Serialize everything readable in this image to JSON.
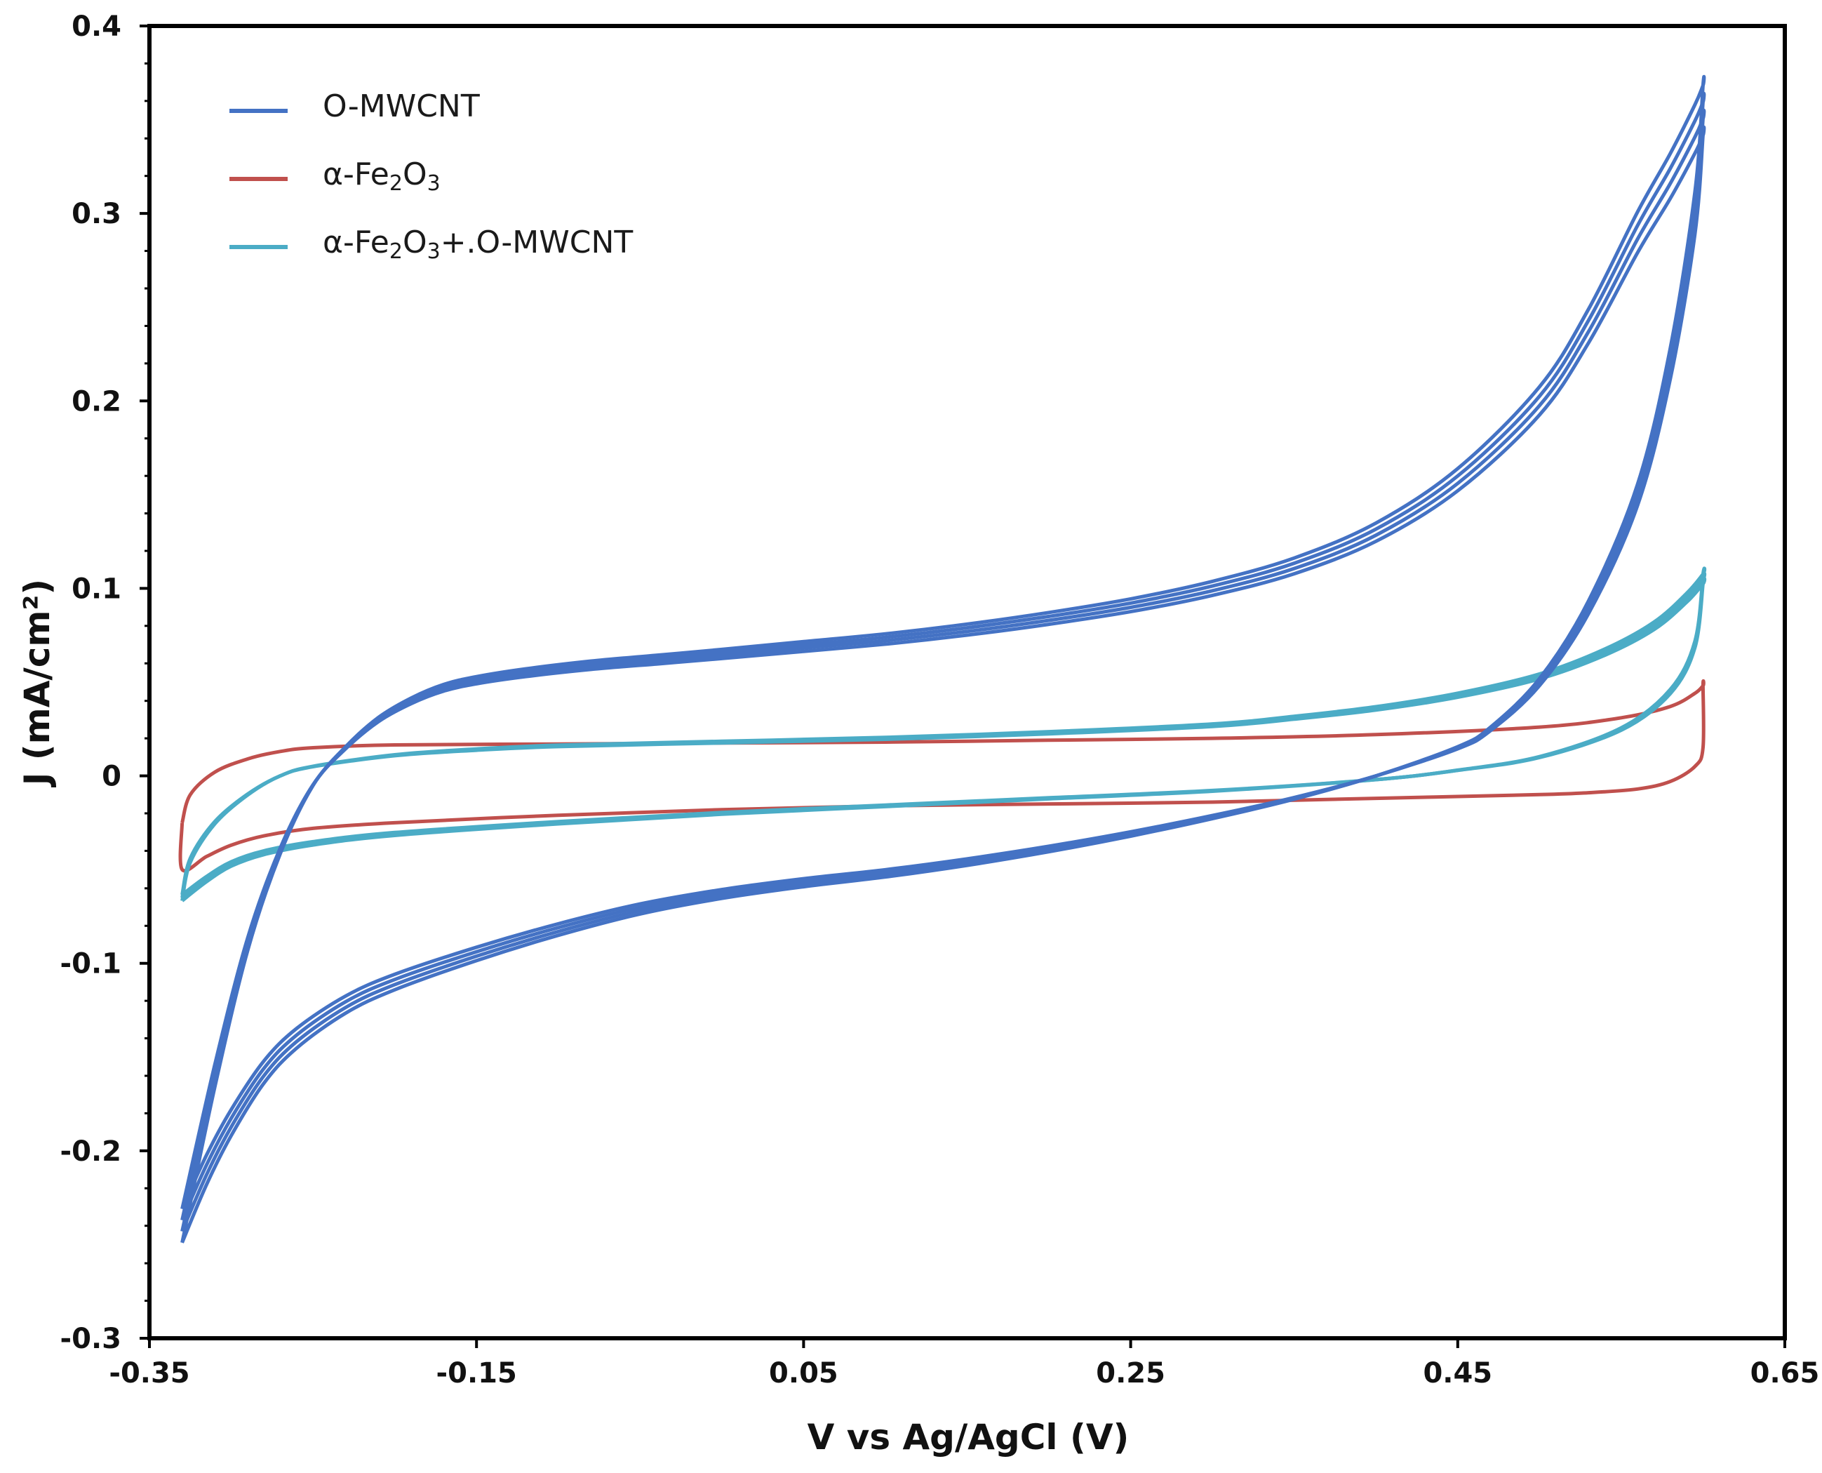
{
  "chart_data": {
    "type": "line",
    "title": "",
    "xlabel": "V vs Ag/AgCl (V)",
    "ylabel": "J (mA/cm²)",
    "xlim": [
      -0.35,
      0.65
    ],
    "ylim": [
      -0.3,
      0.4
    ],
    "x_ticks": [
      -0.35,
      -0.15,
      0.05,
      0.25,
      0.45,
      0.65
    ],
    "x_tick_labels": [
      "-0.35",
      "-0.15",
      "0.05",
      "0.25",
      "0.45",
      "0.65"
    ],
    "y_ticks": [
      -0.3,
      -0.2,
      -0.1,
      0,
      0.1,
      0.2,
      0.3,
      0.4
    ],
    "y_tick_labels": [
      "-0.3",
      "-0.2",
      "-0.1",
      "0",
      "0.1",
      "0.2",
      "0.3",
      "0.4"
    ],
    "grid": false,
    "legend_position": "top-left",
    "series": [
      {
        "name": "O-MWCNT",
        "legend": {
          "main": "O-MWCNT",
          "parts": [
            {
              "t": "O-MWCNT",
              "sub": false
            }
          ]
        },
        "color": "#4472c4",
        "cycles": 4,
        "anodic": {
          "x": [
            -0.33,
            -0.31,
            -0.29,
            -0.27,
            -0.25,
            -0.23,
            -0.21,
            -0.19,
            -0.17,
            -0.15,
            -0.12,
            -0.08,
            -0.04,
            0.0,
            0.05,
            0.1,
            0.15,
            0.2,
            0.25,
            0.3,
            0.35,
            0.4,
            0.45,
            0.5,
            0.53,
            0.56,
            0.58,
            0.595,
            0.6
          ],
          "y": [
            -0.24,
            -0.16,
            -0.09,
            -0.04,
            -0.005,
            0.015,
            0.03,
            0.04,
            0.047,
            0.051,
            0.055,
            0.059,
            0.062,
            0.065,
            0.069,
            0.073,
            0.078,
            0.084,
            0.091,
            0.1,
            0.112,
            0.13,
            0.158,
            0.2,
            0.24,
            0.29,
            0.32,
            0.345,
            0.355
          ]
        },
        "cathodic": {
          "x": [
            0.6,
            0.595,
            0.58,
            0.56,
            0.53,
            0.5,
            0.47,
            0.45,
            0.4,
            0.35,
            0.3,
            0.25,
            0.2,
            0.15,
            0.1,
            0.05,
            0.0,
            -0.05,
            -0.1,
            -0.15,
            -0.2,
            -0.23,
            -0.26,
            -0.28,
            -0.3,
            -0.315,
            -0.33
          ],
          "y": [
            0.355,
            0.3,
            0.22,
            0.15,
            0.09,
            0.05,
            0.025,
            0.015,
            0.0,
            -0.012,
            -0.022,
            -0.031,
            -0.039,
            -0.046,
            -0.052,
            -0.057,
            -0.063,
            -0.071,
            -0.082,
            -0.095,
            -0.11,
            -0.122,
            -0.14,
            -0.158,
            -0.185,
            -0.21,
            -0.24
          ]
        }
      },
      {
        "name": "α-Fe2O3",
        "legend": {
          "parts": [
            {
              "t": "α-Fe",
              "sub": false
            },
            {
              "t": "2",
              "sub": true
            },
            {
              "t": "O",
              "sub": false
            },
            {
              "t": "3",
              "sub": true
            }
          ]
        },
        "color": "#c0504d",
        "cycles": 1,
        "anodic": {
          "x": [
            -0.33,
            -0.325,
            -0.31,
            -0.29,
            -0.27,
            -0.25,
            -0.2,
            -0.1,
            0.0,
            0.1,
            0.2,
            0.3,
            0.4,
            0.5,
            0.55,
            0.58,
            0.595,
            0.6
          ],
          "y": [
            -0.025,
            -0.01,
            0.002,
            0.009,
            0.013,
            0.015,
            0.0165,
            0.017,
            0.0175,
            0.018,
            0.019,
            0.02,
            0.022,
            0.026,
            0.031,
            0.037,
            0.044,
            0.048
          ]
        },
        "cathodic": {
          "x": [
            0.6,
            0.6,
            0.595,
            0.58,
            0.56,
            0.53,
            0.5,
            0.4,
            0.3,
            0.2,
            0.1,
            0.0,
            -0.1,
            -0.2,
            -0.25,
            -0.28,
            -0.3,
            -0.315,
            -0.33,
            -0.33
          ],
          "y": [
            0.048,
            0.015,
            0.005,
            -0.003,
            -0.007,
            -0.009,
            -0.01,
            -0.012,
            -0.014,
            -0.015,
            -0.016,
            -0.018,
            -0.021,
            -0.025,
            -0.028,
            -0.032,
            -0.037,
            -0.043,
            -0.05,
            -0.025
          ]
        }
      },
      {
        "name": "α-Fe2O3+O-MWCNT",
        "legend": {
          "parts": [
            {
              "t": "α-Fe",
              "sub": false
            },
            {
              "t": "2",
              "sub": true
            },
            {
              "t": "O",
              "sub": false
            },
            {
              "t": "3",
              "sub": true
            },
            {
              "t": "+.O-MWCNT",
              "sub": false
            }
          ]
        },
        "color": "#4bacc6",
        "cycles": 3,
        "anodic": {
          "x": [
            -0.33,
            -0.325,
            -0.31,
            -0.29,
            -0.27,
            -0.25,
            -0.2,
            -0.15,
            -0.1,
            0.0,
            0.1,
            0.2,
            0.3,
            0.35,
            0.4,
            0.45,
            0.5,
            0.54,
            0.57,
            0.59,
            0.6
          ],
          "y": [
            -0.065,
            -0.045,
            -0.025,
            -0.01,
            0.0,
            0.005,
            0.011,
            0.014,
            0.016,
            0.018,
            0.02,
            0.023,
            0.027,
            0.031,
            0.036,
            0.043,
            0.053,
            0.066,
            0.08,
            0.095,
            0.105
          ]
        },
        "cathodic": {
          "x": [
            0.6,
            0.595,
            0.58,
            0.55,
            0.5,
            0.45,
            0.4,
            0.3,
            0.2,
            0.1,
            0.0,
            -0.1,
            -0.2,
            -0.25,
            -0.28,
            -0.3,
            -0.315,
            -0.33
          ],
          "y": [
            0.105,
            0.07,
            0.045,
            0.025,
            0.01,
            0.003,
            -0.002,
            -0.008,
            -0.012,
            -0.016,
            -0.02,
            -0.025,
            -0.031,
            -0.036,
            -0.041,
            -0.047,
            -0.055,
            -0.065
          ]
        }
      }
    ]
  }
}
